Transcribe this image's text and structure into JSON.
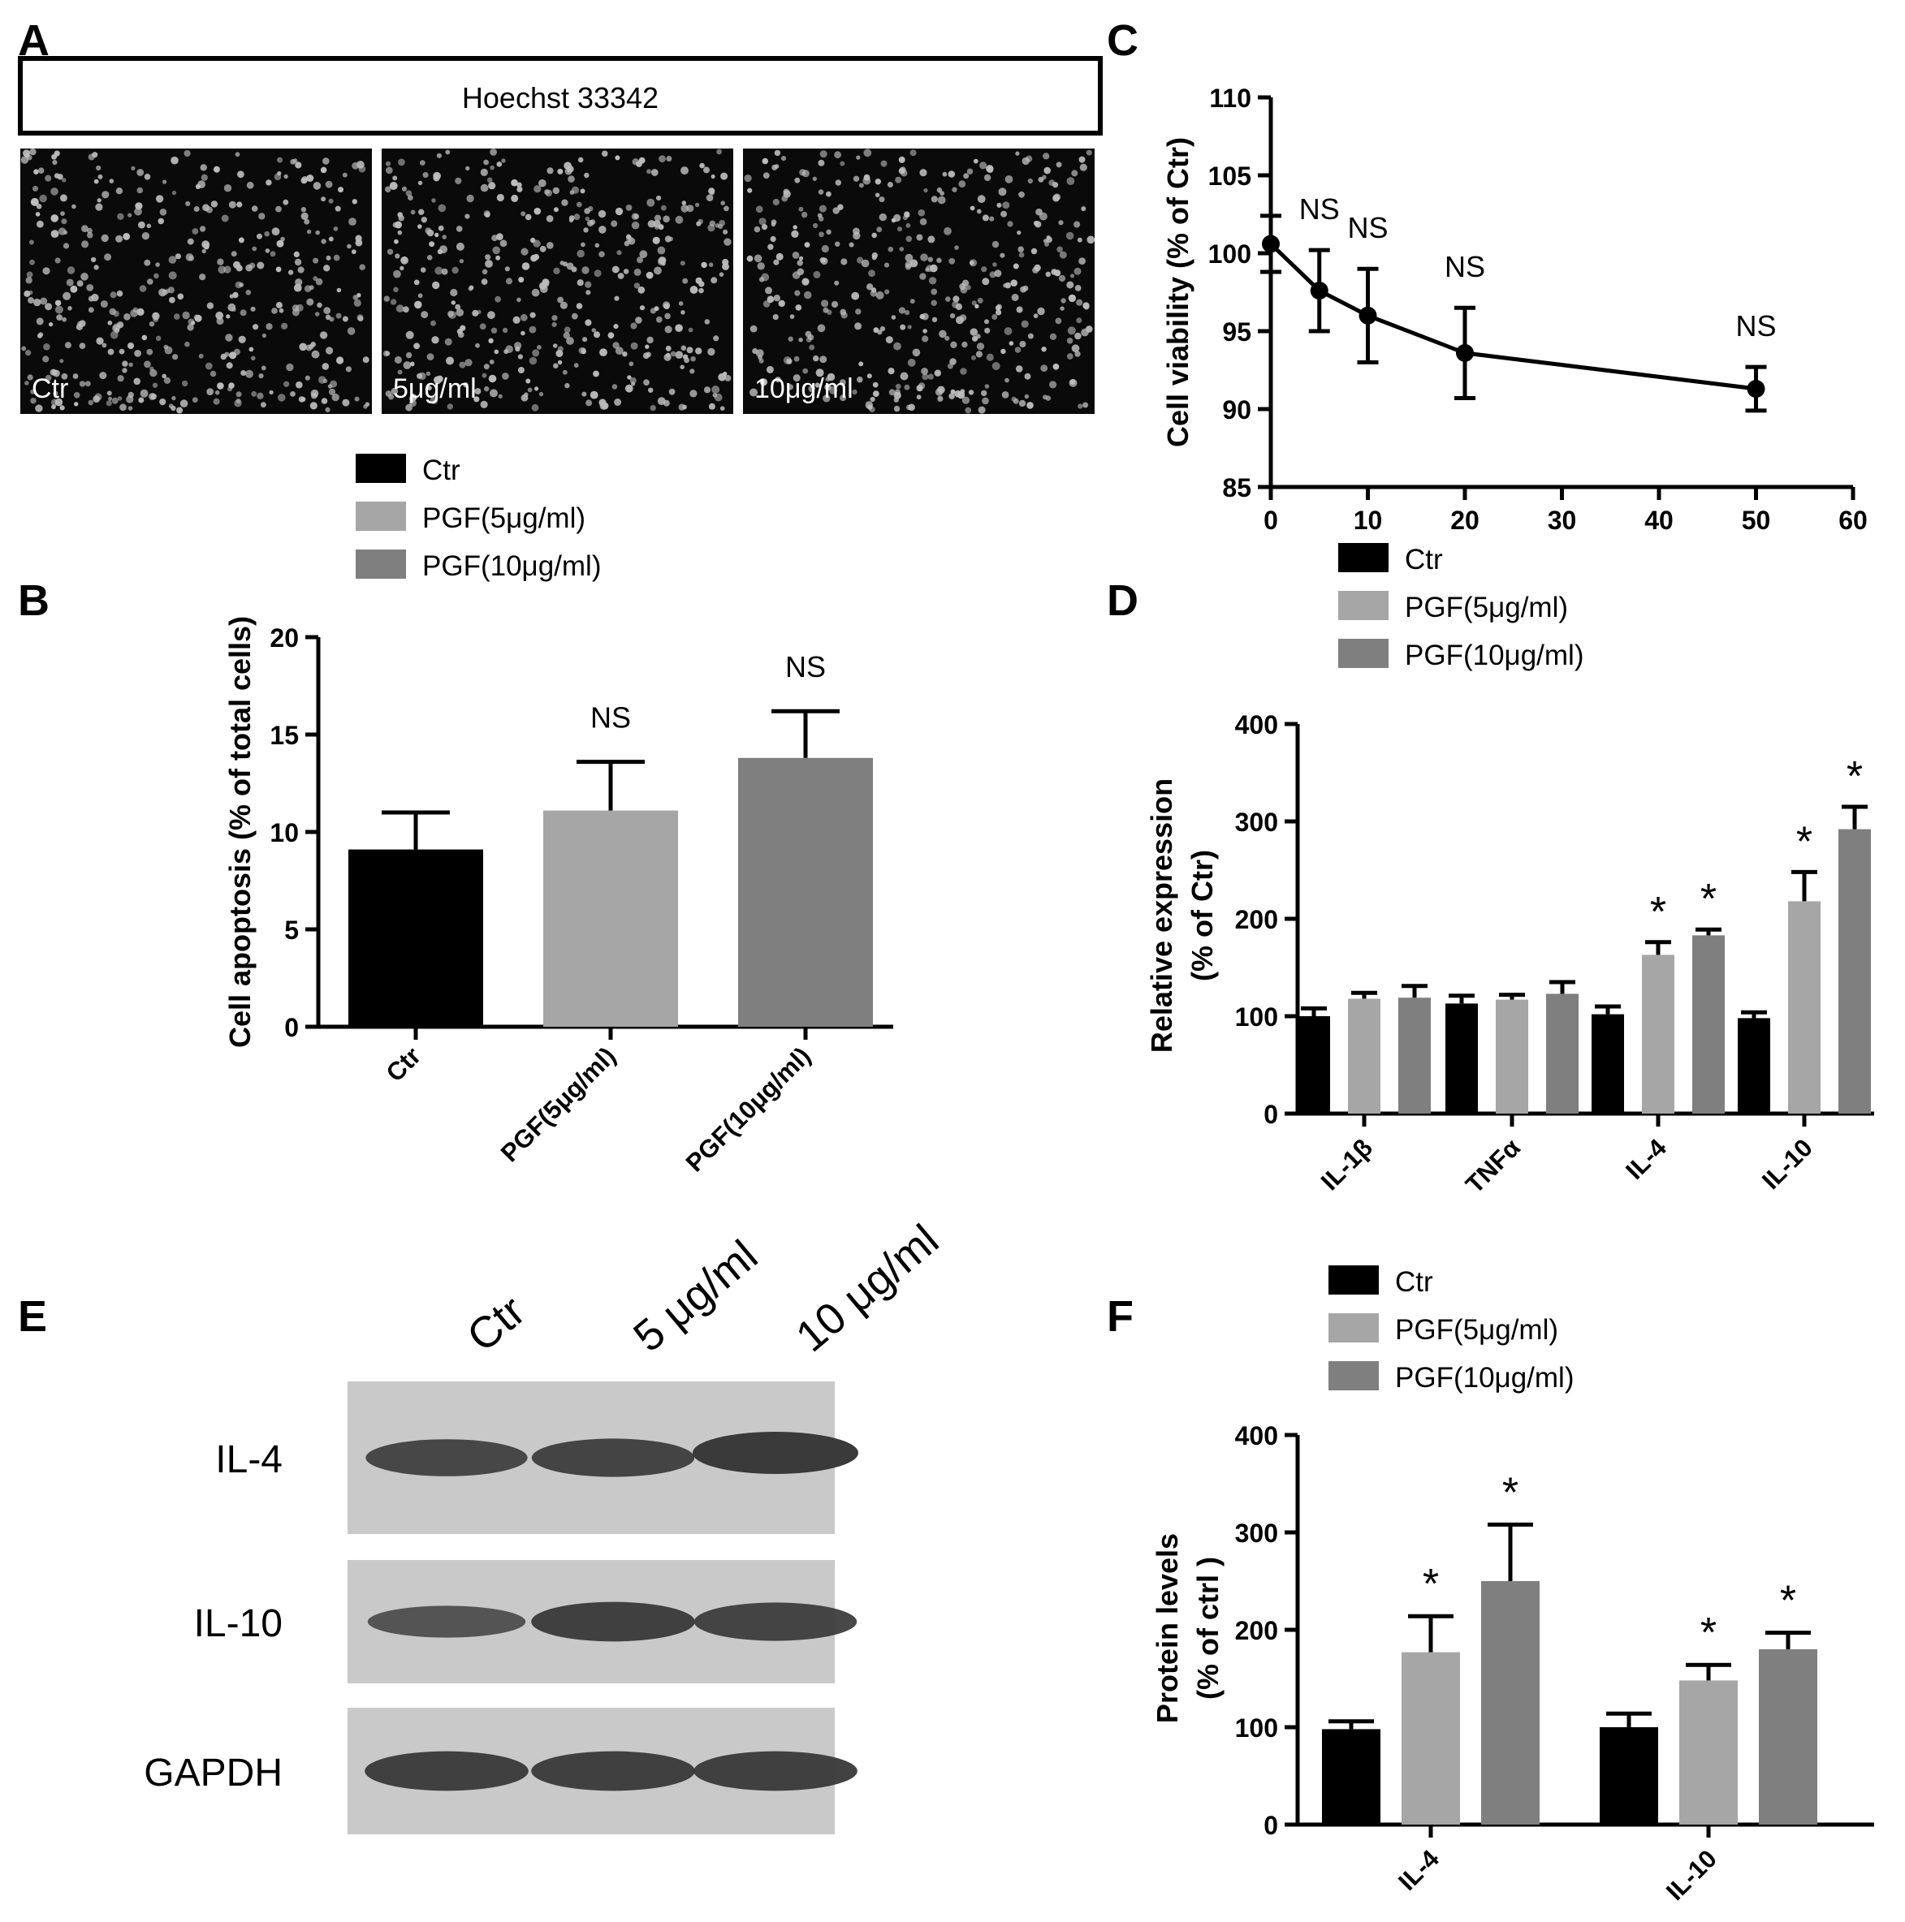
{
  "colors": {
    "ctr": "#000000",
    "pgf5": "#a6a6a6",
    "pgf10": "#7f7f7f",
    "axis": "#000000",
    "micrograph_bg": "#0a0a0a",
    "nucleus": "#bdbdbd",
    "blot_bg": "#c9c9c9",
    "band": "#3a3a3a"
  },
  "legend": {
    "items": [
      {
        "label": "Ctr",
        "key": "ctr"
      },
      {
        "label": "PGF(5μg/ml)",
        "key": "pgf5"
      },
      {
        "label": "PGF(10μg/ml)",
        "key": "pgf10"
      }
    ]
  },
  "panel_a": {
    "letter": "A",
    "header": "Hoechst 33342",
    "images": [
      {
        "label": "Ctr",
        "seed": 11
      },
      {
        "label": "5μg/ml",
        "seed": 37
      },
      {
        "label": "10μg/ml",
        "seed": 73
      }
    ]
  },
  "panel_e": {
    "letter": "E",
    "lanes": [
      "Ctr",
      "5 μg/ml",
      "10 μg/ml"
    ],
    "rows": [
      {
        "label": "IL-4",
        "intensity": [
          0.8,
          0.85,
          1.0
        ]
      },
      {
        "label": "IL-10",
        "intensity": [
          0.6,
          0.9,
          0.85
        ]
      },
      {
        "label": "GAPDH",
        "intensity": [
          0.9,
          0.9,
          0.9
        ]
      }
    ]
  },
  "chart_data": [
    {
      "panel": "B",
      "type": "bar",
      "ylabel": "Cell apoptosis (% of total cells)",
      "ylim": [
        0,
        20
      ],
      "yticks": [
        "0",
        "5",
        "10",
        "15",
        "20"
      ],
      "categories": [
        "Ctr",
        "PGF(5μg/ml)",
        "PGF(10μg/ml)"
      ],
      "values": [
        9.1,
        11.1,
        13.8
      ],
      "errors": [
        1.9,
        2.5,
        2.4
      ],
      "annotations": [
        "",
        "NS",
        "NS"
      ],
      "colors": [
        "ctr",
        "pgf5",
        "pgf10"
      ]
    },
    {
      "panel": "C",
      "type": "line",
      "ylabel": "Cell viability (% of Ctr)",
      "xlim": [
        0,
        60
      ],
      "ylim": [
        85,
        110
      ],
      "xticks": [
        "0",
        "10",
        "20",
        "30",
        "40",
        "50",
        "60"
      ],
      "yticks": [
        "85",
        "90",
        "95",
        "100",
        "105",
        "110"
      ],
      "x": [
        0,
        5,
        10,
        20,
        50
      ],
      "y": [
        100.6,
        97.6,
        96.0,
        93.6,
        91.3
      ],
      "errors": [
        1.8,
        2.6,
        3.0,
        2.9,
        1.4
      ],
      "annotations": [
        "",
        "NS",
        "NS",
        "NS",
        "NS"
      ]
    },
    {
      "panel": "D",
      "type": "bar",
      "ylabel": "Relative expression",
      "ylabel2": "(% of Ctr)",
      "ylim": [
        0,
        400
      ],
      "yticks": [
        "0",
        "100",
        "200",
        "300",
        "400"
      ],
      "categories": [
        "IL-1β",
        "TNFα",
        "IL-4",
        "IL-10"
      ],
      "series": [
        {
          "name": "Ctr",
          "values": [
            100,
            113,
            102,
            98
          ],
          "errors": [
            8,
            8,
            8,
            6
          ]
        },
        {
          "name": "PGF(5μg/ml)",
          "values": [
            118,
            117,
            163,
            218
          ],
          "errors": [
            6,
            5,
            13,
            30
          ]
        },
        {
          "name": "PGF(10μg/ml)",
          "values": [
            119,
            123,
            183,
            292
          ],
          "errors": [
            12,
            12,
            6,
            23
          ]
        }
      ],
      "annotations": [
        [
          "",
          "",
          ""
        ],
        [
          "",
          "",
          ""
        ],
        [
          "",
          "*",
          "*"
        ],
        [
          "",
          "*",
          "*"
        ]
      ]
    },
    {
      "panel": "F",
      "type": "bar",
      "ylabel": "Protein levels",
      "ylabel2": "(% of ctrl )",
      "ylim": [
        0,
        400
      ],
      "yticks": [
        "0",
        "100",
        "200",
        "300",
        "400"
      ],
      "categories": [
        "IL-4",
        "IL-10"
      ],
      "series": [
        {
          "name": "Ctr",
          "values": [
            98,
            100
          ],
          "errors": [
            8,
            14
          ]
        },
        {
          "name": "PGF(5μg/ml)",
          "values": [
            177,
            148
          ],
          "errors": [
            37,
            16
          ]
        },
        {
          "name": "PGF(10μg/ml)",
          "values": [
            250,
            180
          ],
          "errors": [
            58,
            17
          ]
        }
      ],
      "annotations": [
        [
          "",
          "*",
          "*"
        ],
        [
          "",
          "*",
          "*"
        ]
      ]
    }
  ]
}
